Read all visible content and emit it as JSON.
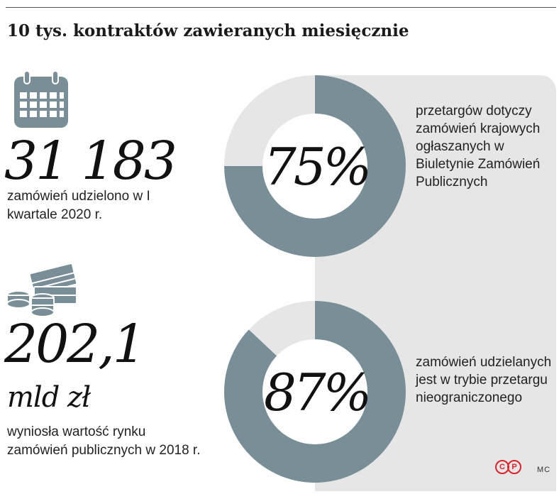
{
  "title": "10 tys. kontraktów zawieranych miesięcznie",
  "stats": [
    {
      "value": "31 183",
      "caption": "zamówień udzielono w I kwartale 2020 r.",
      "icon": "calendar-icon"
    },
    {
      "value": "202,1",
      "unit": "mld zł",
      "caption": "wyniosła wartość rynku zamówień publicznych w 2018 r.",
      "icon": "money-icon"
    }
  ],
  "chart_data": [
    {
      "type": "pie",
      "value_percent": 75,
      "label": "75%",
      "description": "przetargów dotyczy zamówień krajowych ogłaszanych w Biuletynie Zamówień Publicznych",
      "colors": {
        "filled": "#7a8e98",
        "remaining": "#e6e6e6"
      }
    },
    {
      "type": "pie",
      "value_percent": 87,
      "label": "87%",
      "description": "zamówień udzielanych jest w trybie przetargu nieograniczonego",
      "colors": {
        "filled": "#7a8e98",
        "remaining": "#e6e6e6"
      }
    }
  ],
  "colors": {
    "accent": "#7a8e98",
    "panel": "#e6e6e6",
    "logo": "#d9232d"
  },
  "footer": {
    "logo_letters": [
      "C",
      "P"
    ],
    "credit": "MC"
  }
}
